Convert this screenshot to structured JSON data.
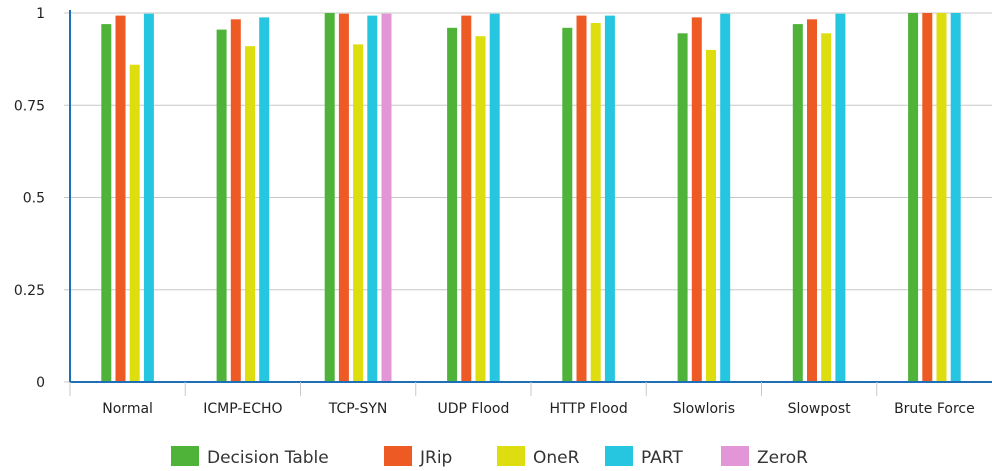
{
  "chart_data": {
    "type": "bar",
    "categories": [
      "Normal",
      "ICMP-ECHO",
      "TCP-SYN",
      "UDP Flood",
      "HTTP Flood",
      "Slowloris",
      "Slowpost",
      "Brute Force"
    ],
    "series": [
      {
        "name": "Decision Table",
        "color": "#4fb33a",
        "values": [
          0.97,
          0.955,
          1.0,
          0.96,
          0.96,
          0.945,
          0.97,
          1.0
        ]
      },
      {
        "name": "JRip",
        "color": "#ee5a24",
        "values": [
          0.993,
          0.983,
          0.998,
          0.993,
          0.993,
          0.988,
          0.983,
          1.0
        ]
      },
      {
        "name": "OneR",
        "color": "#dedd10",
        "values": [
          0.86,
          0.91,
          0.915,
          0.937,
          0.973,
          0.9,
          0.945,
          1.0
        ]
      },
      {
        "name": "PART",
        "color": "#26c6e0",
        "values": [
          0.998,
          0.988,
          0.993,
          0.998,
          0.993,
          0.998,
          0.998,
          1.0
        ]
      },
      {
        "name": "ZeroR",
        "color": "#e296d8",
        "values": [
          null,
          null,
          0.998,
          null,
          null,
          null,
          null,
          null
        ]
      }
    ],
    "yticks": [
      "0",
      "0.25",
      "0.5",
      "0.75",
      "1"
    ],
    "ylim": [
      0,
      1
    ],
    "grid": true,
    "legend": "bottom"
  }
}
